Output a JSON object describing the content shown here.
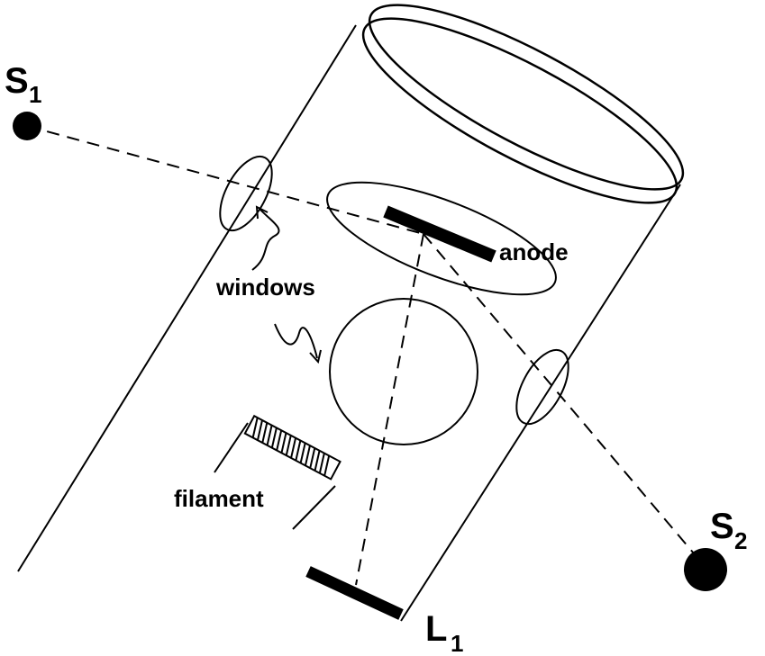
{
  "labels": {
    "s1_main": "S",
    "s1_sub": "1",
    "s2_main": "S",
    "s2_sub": "2",
    "l1_main": "L",
    "l1_sub": "1",
    "anode": "anode",
    "windows": "windows",
    "filament": "filament"
  },
  "colors": {
    "ink": "#000000",
    "background": "#ffffff"
  }
}
